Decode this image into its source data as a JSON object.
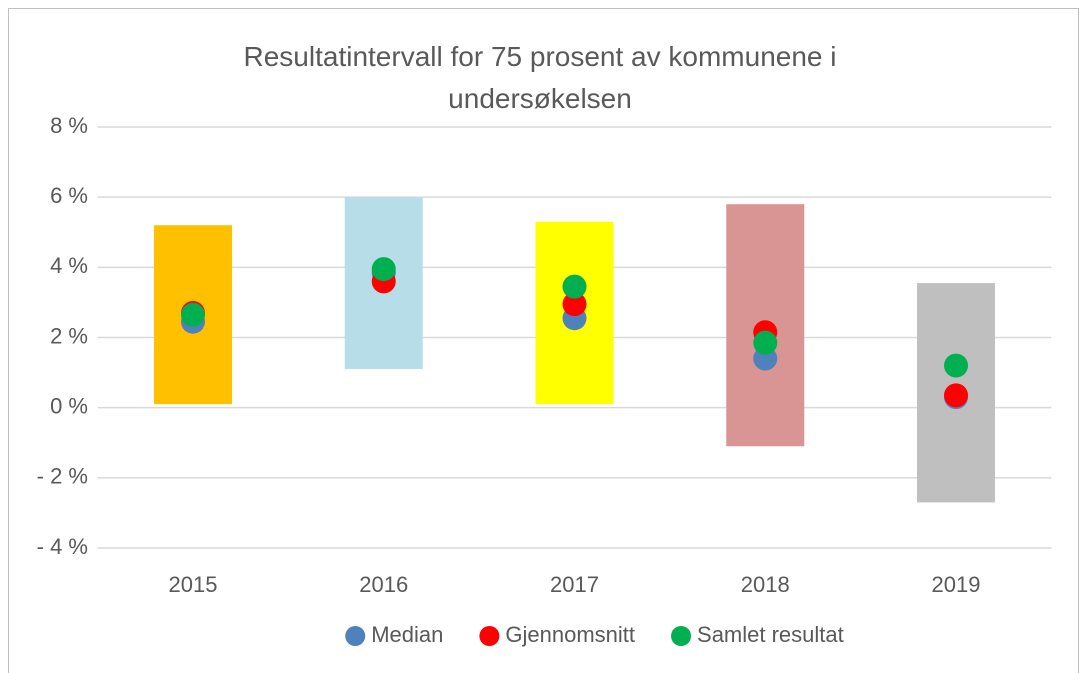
{
  "chart_data": {
    "type": "range-dots",
    "title": "Resultatintervall for 75 prosent av kommunene i undersøkelsen",
    "categories": [
      "2015",
      "2016",
      "2017",
      "2018",
      "2019"
    ],
    "low": [
      0.1,
      1.1,
      0.1,
      -1.1,
      -2.7
    ],
    "high": [
      5.2,
      6.0,
      5.3,
      5.8,
      3.55
    ],
    "bar_colors": [
      "#ffc000",
      "#b7dde8",
      "#ffff00",
      "#d99594",
      "#bfbfbf"
    ],
    "series": [
      {
        "name": "Median",
        "color": "#4f81bd",
        "values": [
          2.45,
          3.85,
          2.55,
          1.4,
          0.3
        ]
      },
      {
        "name": "Gjennomsnitt",
        "color": "#ff0000",
        "values": [
          2.7,
          3.6,
          2.95,
          2.15,
          0.35
        ]
      },
      {
        "name": "Samlet resultat",
        "color": "#00b050",
        "values": [
          2.65,
          3.95,
          3.45,
          1.85,
          1.2
        ]
      }
    ],
    "ylim": [
      -4,
      8
    ],
    "yticks": [
      {
        "value": -4,
        "label": "- 4 %"
      },
      {
        "value": -2,
        "label": "- 2 %"
      },
      {
        "value": 0,
        "label": "0 %"
      },
      {
        "value": 2,
        "label": "2 %"
      },
      {
        "value": 4,
        "label": "4 %"
      },
      {
        "value": 6,
        "label": "6 %"
      },
      {
        "value": 8,
        "label": "8 %"
      }
    ],
    "grid": true,
    "legend": "bottom"
  }
}
